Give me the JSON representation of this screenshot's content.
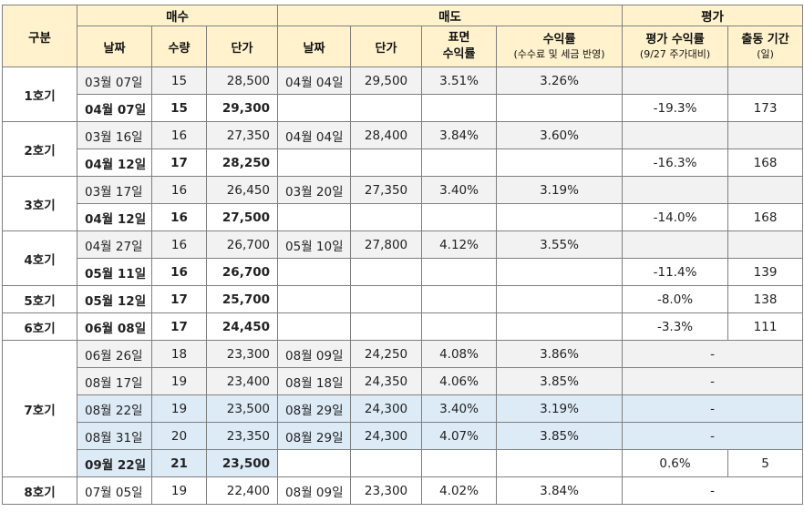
{
  "header": {
    "group": "구분",
    "buy": "매수",
    "sell": "매도",
    "eval": "평가",
    "date": "날짜",
    "qty": "수량",
    "price": "단가",
    "sell_date": "날짜",
    "sell_price": "단가",
    "surface_return_1": "표면",
    "surface_return_2": "수익률",
    "return_main": "수익률",
    "return_sub": "(수수료 및 세금 반영)",
    "eval_return_main": "평가 수익률",
    "eval_return_sub": "(9/27 주가대비)",
    "days_main": "출동 기간",
    "days_sub": "(일)"
  },
  "groups": [
    {
      "label": "1호기",
      "rows": [
        {
          "date": "03월 07일",
          "qty": "15",
          "price": "28,500",
          "sell_date": "04월 04일",
          "sell_price": "29,500",
          "surface": "3.51%",
          "ret": "3.26%",
          "eval": "",
          "days": ""
        },
        {
          "date": "04월 07일",
          "qty": "15",
          "price": "29,300",
          "sell_date": "",
          "sell_price": "",
          "surface": "",
          "ret": "",
          "eval": "-19.3%",
          "days": "173"
        }
      ]
    },
    {
      "label": "2호기",
      "rows": [
        {
          "date": "03월 16일",
          "qty": "16",
          "price": "27,350",
          "sell_date": "04월 04일",
          "sell_price": "28,400",
          "surface": "3.84%",
          "ret": "3.60%",
          "eval": "",
          "days": ""
        },
        {
          "date": "04월 12일",
          "qty": "17",
          "price": "28,250",
          "sell_date": "",
          "sell_price": "",
          "surface": "",
          "ret": "",
          "eval": "-16.3%",
          "days": "168"
        }
      ]
    },
    {
      "label": "3호기",
      "rows": [
        {
          "date": "03월 17일",
          "qty": "16",
          "price": "26,450",
          "sell_date": "03월 20일",
          "sell_price": "27,350",
          "surface": "3.40%",
          "ret": "3.19%",
          "eval": "",
          "days": ""
        },
        {
          "date": "04월 12일",
          "qty": "16",
          "price": "27,500",
          "sell_date": "",
          "sell_price": "",
          "surface": "",
          "ret": "",
          "eval": "-14.0%",
          "days": "168"
        }
      ]
    },
    {
      "label": "4호기",
      "rows": [
        {
          "date": "04월 27일",
          "qty": "16",
          "price": "26,700",
          "sell_date": "05월 10일",
          "sell_price": "27,800",
          "surface": "4.12%",
          "ret": "3.55%",
          "eval": "",
          "days": ""
        },
        {
          "date": "05월 11일",
          "qty": "16",
          "price": "26,700",
          "sell_date": "",
          "sell_price": "",
          "surface": "",
          "ret": "",
          "eval": "-11.4%",
          "days": "139"
        }
      ]
    },
    {
      "label": "5호기",
      "rows": [
        {
          "date": "05월 12일",
          "qty": "17",
          "price": "25,700",
          "sell_date": "",
          "sell_price": "",
          "surface": "",
          "ret": "",
          "eval": "-8.0%",
          "days": "138"
        }
      ]
    },
    {
      "label": "6호기",
      "rows": [
        {
          "date": "06월 08일",
          "qty": "17",
          "price": "24,450",
          "sell_date": "",
          "sell_price": "",
          "surface": "",
          "ret": "",
          "eval": "-3.3%",
          "days": "111"
        }
      ]
    },
    {
      "label": "7호기",
      "rows": [
        {
          "date": "06월 26일",
          "qty": "18",
          "price": "23,300",
          "sell_date": "08월 09일",
          "sell_price": "24,250",
          "surface": "4.08%",
          "ret": "3.86%",
          "eval": "-"
        },
        {
          "date": "08월 17일",
          "qty": "19",
          "price": "23,400",
          "sell_date": "08월 18일",
          "sell_price": "24,350",
          "surface": "4.06%",
          "ret": "3.85%",
          "eval": "-"
        },
        {
          "date": "08월 22일",
          "qty": "19",
          "price": "23,500",
          "sell_date": "08월 29일",
          "sell_price": "24,300",
          "surface": "3.40%",
          "ret": "3.19%",
          "eval": "-"
        },
        {
          "date": "08월 31일",
          "qty": "20",
          "price": "23,350",
          "sell_date": "08월 29일",
          "sell_price": "24,300",
          "surface": "4.07%",
          "ret": "3.85%",
          "eval": "-"
        },
        {
          "date": "09월 22일",
          "qty": "21",
          "price": "23,500",
          "sell_date": "",
          "sell_price": "",
          "surface": "",
          "ret": "",
          "eval": "0.6%",
          "days": "5"
        }
      ]
    },
    {
      "label": "8호기",
      "rows": [
        {
          "date": "07월 05일",
          "qty": "19",
          "price": "22,400",
          "sell_date": "08월 09일",
          "sell_price": "23,300",
          "surface": "4.02%",
          "ret": "3.84%",
          "eval": "-"
        }
      ]
    }
  ]
}
